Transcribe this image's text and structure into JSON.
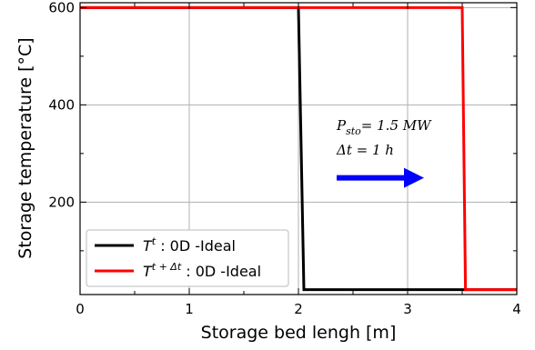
{
  "chart_data": {
    "type": "line",
    "title": "",
    "xlabel": "Storage bed lengh [m]",
    "ylabel": "Storage temperature [°C]",
    "xlim": [
      0,
      4
    ],
    "ylim": [
      10,
      610
    ],
    "x_ticks": [
      0,
      1,
      2,
      3,
      4
    ],
    "y_ticks": [
      200,
      400,
      600
    ],
    "grid": true,
    "legend": {
      "placement": "lower-left"
    },
    "series": [
      {
        "name": "T^t : 0D -Ideal",
        "legend_base": "T",
        "legend_sup": "t",
        "legend_suffix": " : 0D -Ideal",
        "color": "#000000",
        "x": [
          0,
          2.0,
          2.05,
          4
        ],
        "y": [
          600,
          600,
          20,
          20
        ]
      },
      {
        "name": "T^{t+Δt} : 0D -Ideal",
        "legend_base": "T",
        "legend_sup": "t + Δt",
        "legend_suffix": " : 0D -Ideal",
        "color": "#ff0000",
        "x": [
          0,
          3.5,
          3.53,
          4
        ],
        "y": [
          600,
          600,
          20,
          20
        ]
      }
    ],
    "annotations": [
      {
        "main": "P",
        "sub": "sto",
        "rest": "= 1.5 MW"
      },
      {
        "main": "Δt = 1 h"
      }
    ],
    "arrow": {
      "color": "#0000ff",
      "direction": "right",
      "x_from": 2.35,
      "x_to": 3.15,
      "y": 250
    }
  }
}
